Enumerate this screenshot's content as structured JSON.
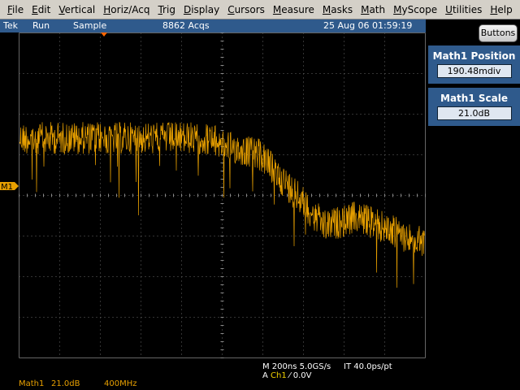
{
  "menu": {
    "items": [
      "File",
      "Edit",
      "Vertical",
      "Horiz/Acq",
      "Trig",
      "Display",
      "Cursors",
      "Measure",
      "Masks",
      "Math",
      "MyScope",
      "Utilities",
      "Help"
    ]
  },
  "status": {
    "brand": "Tek",
    "state": "Run",
    "mode": "Sample",
    "acquisitions": "8862 Acqs",
    "datetime": "25 Aug 06 01:59:19"
  },
  "buttons_label": "Buttons",
  "panel": [
    {
      "title": "Math1 Position",
      "value": "190.48mdiv"
    },
    {
      "title": "Math1 Scale",
      "value": "21.0dB"
    }
  ],
  "marker": "M1",
  "readout": {
    "timebase": "M 200ns 5.0GS/s",
    "record": "IT 40.0ps/pt",
    "trigger_prefix": "A",
    "trigger_channel": "Ch1",
    "trigger_slope": "⁄",
    "trigger_level": "0.0V"
  },
  "footer": {
    "channel": "Math1",
    "scale": "21.0dB",
    "bandwidth": "400MHz"
  }
}
